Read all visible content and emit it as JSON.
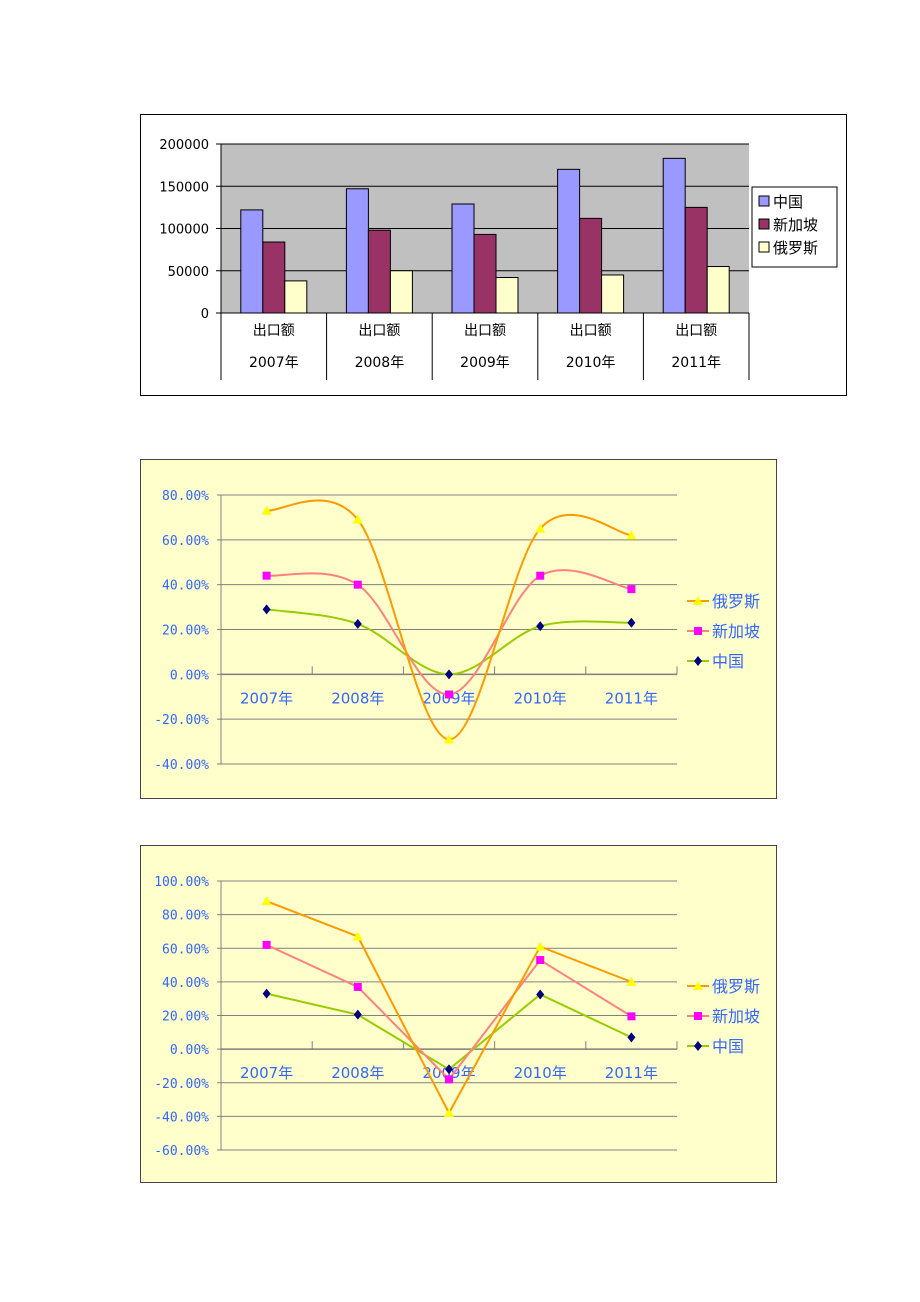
{
  "chart_data": [
    {
      "type": "bar",
      "categories": [
        "2007年",
        "2008年",
        "2009年",
        "2010年",
        "2011年"
      ],
      "subcategory_label": "出口额",
      "ylim": [
        0,
        200000
      ],
      "yticks": [
        "200000",
        "150000",
        "100000",
        "50000",
        "0"
      ],
      "series": [
        {
          "name": "中国",
          "values": [
            122000,
            147000,
            129000,
            170000,
            183000
          ],
          "color": "#9999ff"
        },
        {
          "name": "新加坡",
          "values": [
            84000,
            98000,
            93000,
            112000,
            125000
          ],
          "color": "#993366"
        },
        {
          "name": "俄罗斯",
          "values": [
            38000,
            50000,
            42000,
            45000,
            55000
          ],
          "color": "#ffffcc"
        }
      ],
      "grid": true,
      "plot_background": "#c0c0c0",
      "legend_position": "right"
    },
    {
      "type": "line",
      "smooth": true,
      "categories": [
        "2007年",
        "2008年",
        "2009年",
        "2010年",
        "2011年"
      ],
      "ylim": [
        -40,
        80
      ],
      "yticks": [
        "80.00%",
        "60.00%",
        "40.00%",
        "20.00%",
        "0.00%",
        "-20.00%",
        "-40.00%"
      ],
      "series": [
        {
          "name": "俄罗斯",
          "values": [
            73,
            69,
            -29,
            65,
            62
          ],
          "color": "#ff9900",
          "marker": "triangle"
        },
        {
          "name": "新加坡",
          "values": [
            44,
            40,
            -9,
            44,
            38
          ],
          "color": "#ff8080",
          "marker_color": "#ff00ff",
          "marker": "square"
        },
        {
          "name": "中国",
          "values": [
            29,
            22.5,
            0,
            21.5,
            23
          ],
          "color": "#99cc00",
          "marker_color": "#000080",
          "marker": "diamond"
        }
      ],
      "grid": true,
      "plot_background": "#ffffcc",
      "legend_position": "right"
    },
    {
      "type": "line",
      "smooth": false,
      "categories": [
        "2007年",
        "2008年",
        "2009年",
        "2010年",
        "2011年"
      ],
      "ylim": [
        -60,
        100
      ],
      "yticks": [
        "100.00%",
        "80.00%",
        "60.00%",
        "40.00%",
        "20.00%",
        "0.00%",
        "-20.00%",
        "-40.00%",
        "-60.00%"
      ],
      "series": [
        {
          "name": "俄罗斯",
          "values": [
            88,
            67,
            -38,
            61,
            40
          ],
          "color": "#ff9900",
          "marker": "triangle"
        },
        {
          "name": "新加坡",
          "values": [
            62,
            37,
            -18,
            53,
            19.5
          ],
          "color": "#ff8080",
          "marker_color": "#ff00ff",
          "marker": "square"
        },
        {
          "name": "中国",
          "values": [
            33,
            20.5,
            -12,
            32.5,
            7
          ],
          "color": "#99cc00",
          "marker_color": "#000080",
          "marker": "diamond"
        }
      ],
      "grid": true,
      "plot_background": "#ffffcc",
      "legend_position": "right"
    }
  ]
}
